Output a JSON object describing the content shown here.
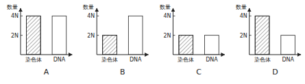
{
  "chart_data": [
    {
      "type": "bar",
      "xlabel": "A",
      "ylabel": "数量",
      "categories": [
        "染色体",
        "DNA"
      ],
      "values": [
        4,
        4
      ],
      "color": "white",
      "ylim": [
        0,
        4.8
      ],
      "yticks": [
        {
          "value": 2,
          "label": "2N"
        },
        {
          "value": 4,
          "label": "4N"
        }
      ]
    },
    {
      "type": "bar",
      "xlabel": "B",
      "ylabel": "数量",
      "categories": [
        "染色体",
        "DNA"
      ],
      "values": [
        2,
        4
      ],
      "color": "white",
      "ylim": [
        0,
        4.8
      ],
      "yticks": [
        {
          "value": 2,
          "label": "2N"
        },
        {
          "value": 4,
          "label": "4N"
        }
      ]
    },
    {
      "type": "bar",
      "xlabel": "C",
      "ylabel": "数量",
      "categories": [
        "染色体",
        "DNA"
      ],
      "values": [
        2,
        2
      ],
      "color": "white",
      "ylim": [
        0,
        4.8
      ],
      "yticks": [
        {
          "value": 2,
          "label": "2N"
        },
        {
          "value": 4,
          "label": "4N"
        }
      ]
    },
    {
      "type": "bar",
      "xlabel": "D",
      "ylabel": "数量",
      "categories": [
        "染色体",
        "DNA"
      ],
      "values": [
        4,
        2
      ],
      "color": "white",
      "ylim": [
        0,
        4.8
      ],
      "yticks": [
        {
          "value": 2,
          "label": "2N"
        },
        {
          "value": 4,
          "label": "4N"
        }
      ]
    }
  ]
}
